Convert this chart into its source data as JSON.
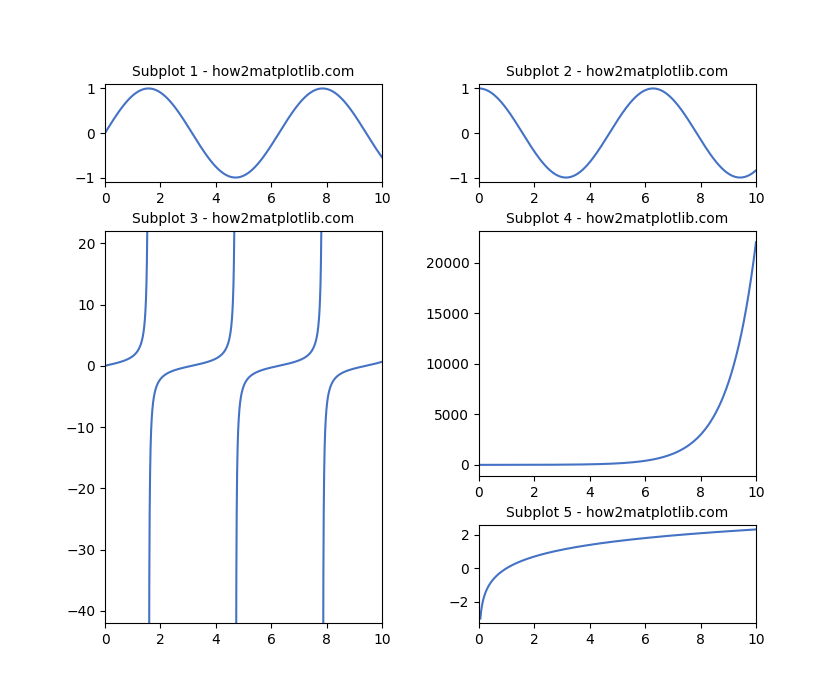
{
  "title1": "Subplot 1 - how2matplotlib.com",
  "title2": "Subplot 2 - how2matplotlib.com",
  "title3": "Subplot 3 - how2matplotlib.com",
  "title4": "Subplot 4 - how2matplotlib.com",
  "title5": "Subplot 5 - how2matplotlib.com",
  "line_color": "#4472c4",
  "line_width": 1.5,
  "x_min": 0,
  "x_max": 10,
  "n_points": 2000,
  "fig_width": 8.4,
  "fig_height": 7.0,
  "background_color": "#ffffff",
  "grid_rows": 4,
  "grid_cols": 2,
  "hspace": 0.5,
  "wspace": 0.35
}
